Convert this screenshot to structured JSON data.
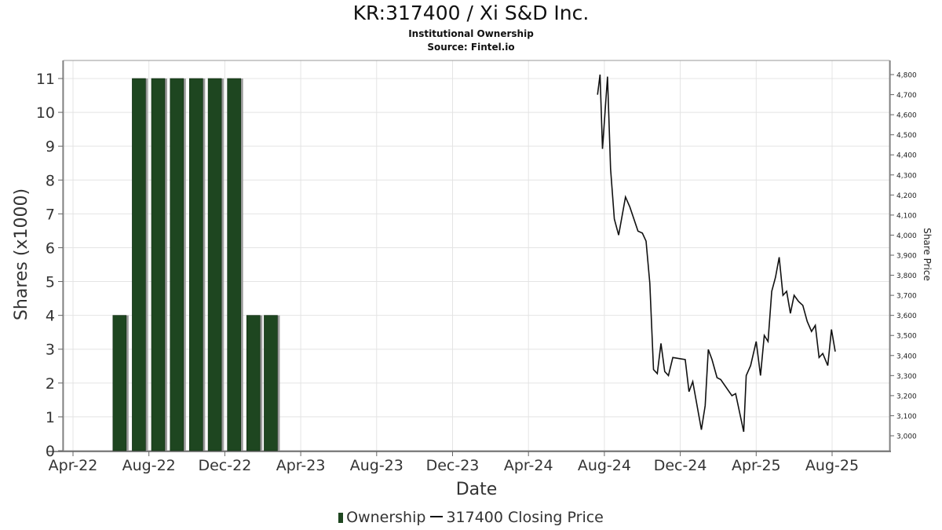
{
  "title": "KR:317400 / Xi S&D Inc.",
  "subtitle": "Institutional Ownership",
  "source": "Source: Fintel.io",
  "legend": {
    "ownership": "Ownership",
    "price": "317400 Closing Price"
  },
  "colors": {
    "bar": "#1e4620",
    "bar_shadow": "#9a9a9a",
    "line": "#111111",
    "grid": "#e4e4e4"
  },
  "chart_data": {
    "type": "bar",
    "xlabel": "Date",
    "ylabel": "Shares (x1000)",
    "y2label": "Share Price",
    "ylim": [
      0,
      11
    ],
    "y2lim": [
      2950,
      4820
    ],
    "grid": true,
    "legend_position": "bottom",
    "x_ticks": [
      "Apr-22",
      "Aug-22",
      "Dec-22",
      "Apr-23",
      "Aug-23",
      "Dec-23",
      "Apr-24",
      "Aug-24",
      "Dec-24",
      "Apr-25",
      "Aug-25"
    ],
    "y_ticks": [
      0,
      1,
      2,
      3,
      4,
      5,
      6,
      7,
      8,
      9,
      10,
      11
    ],
    "y2_ticks": [
      "3,000",
      "3,100",
      "3,200",
      "3,300",
      "3,400",
      "3,500",
      "3,600",
      "3,700",
      "3,800",
      "3,900",
      "4,000",
      "4,100",
      "4,200",
      "4,300",
      "4,400",
      "4,500",
      "4,600",
      "4,700",
      "4,800"
    ],
    "series": [
      {
        "name": "Ownership",
        "type": "bar",
        "axis": "left",
        "points": [
          {
            "x": "2022-06-30",
            "y": 4
          },
          {
            "x": "2022-07-31",
            "y": 11
          },
          {
            "x": "2022-08-31",
            "y": 11
          },
          {
            "x": "2022-09-30",
            "y": 11
          },
          {
            "x": "2022-10-31",
            "y": 11
          },
          {
            "x": "2022-11-30",
            "y": 11
          },
          {
            "x": "2022-12-31",
            "y": 11
          },
          {
            "x": "2023-01-31",
            "y": 4
          },
          {
            "x": "2023-02-28",
            "y": 4
          }
        ]
      },
      {
        "name": "317400 Closing Price",
        "type": "line",
        "axis": "right",
        "points": [
          {
            "x": "2024-07-22",
            "y": 4700
          },
          {
            "x": "2024-07-26",
            "y": 4800
          },
          {
            "x": "2024-07-30",
            "y": 4430
          },
          {
            "x": "2024-08-07",
            "y": 4790
          },
          {
            "x": "2024-08-12",
            "y": 4330
          },
          {
            "x": "2024-08-18",
            "y": 4080
          },
          {
            "x": "2024-08-25",
            "y": 4000
          },
          {
            "x": "2024-09-05",
            "y": 4190
          },
          {
            "x": "2024-09-12",
            "y": 4140
          },
          {
            "x": "2024-09-25",
            "y": 4020
          },
          {
            "x": "2024-10-02",
            "y": 4010
          },
          {
            "x": "2024-10-08",
            "y": 3970
          },
          {
            "x": "2024-10-14",
            "y": 3760
          },
          {
            "x": "2024-10-20",
            "y": 3330
          },
          {
            "x": "2024-10-26",
            "y": 3310
          },
          {
            "x": "2024-11-01",
            "y": 3460
          },
          {
            "x": "2024-11-07",
            "y": 3320
          },
          {
            "x": "2024-11-13",
            "y": 3300
          },
          {
            "x": "2024-11-20",
            "y": 3390
          },
          {
            "x": "2024-12-10",
            "y": 3380
          },
          {
            "x": "2024-12-16",
            "y": 3220
          },
          {
            "x": "2024-12-22",
            "y": 3270
          },
          {
            "x": "2025-01-05",
            "y": 3030
          },
          {
            "x": "2025-01-11",
            "y": 3150
          },
          {
            "x": "2025-01-16",
            "y": 3430
          },
          {
            "x": "2025-01-22",
            "y": 3380
          },
          {
            "x": "2025-01-30",
            "y": 3290
          },
          {
            "x": "2025-02-05",
            "y": 3280
          },
          {
            "x": "2025-02-23",
            "y": 3200
          },
          {
            "x": "2025-03-01",
            "y": 3210
          },
          {
            "x": "2025-03-14",
            "y": 3020
          },
          {
            "x": "2025-03-18",
            "y": 3300
          },
          {
            "x": "2025-03-25",
            "y": 3350
          },
          {
            "x": "2025-04-03",
            "y": 3470
          },
          {
            "x": "2025-04-10",
            "y": 3300
          },
          {
            "x": "2025-04-16",
            "y": 3500
          },
          {
            "x": "2025-04-22",
            "y": 3470
          },
          {
            "x": "2025-04-28",
            "y": 3720
          },
          {
            "x": "2025-05-04",
            "y": 3790
          },
          {
            "x": "2025-05-10",
            "y": 3890
          },
          {
            "x": "2025-05-16",
            "y": 3700
          },
          {
            "x": "2025-05-22",
            "y": 3720
          },
          {
            "x": "2025-05-28",
            "y": 3610
          },
          {
            "x": "2025-06-03",
            "y": 3700
          },
          {
            "x": "2025-06-10",
            "y": 3670
          },
          {
            "x": "2025-06-17",
            "y": 3650
          },
          {
            "x": "2025-06-24",
            "y": 3570
          },
          {
            "x": "2025-07-01",
            "y": 3520
          },
          {
            "x": "2025-07-07",
            "y": 3550
          },
          {
            "x": "2025-07-13",
            "y": 3390
          },
          {
            "x": "2025-07-19",
            "y": 3410
          },
          {
            "x": "2025-07-27",
            "y": 3350
          },
          {
            "x": "2025-08-02",
            "y": 3530
          },
          {
            "x": "2025-08-08",
            "y": 3420
          }
        ]
      }
    ]
  }
}
